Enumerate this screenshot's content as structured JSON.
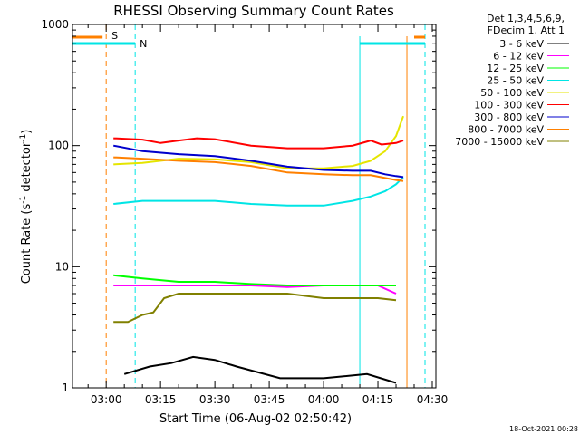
{
  "chart_data": {
    "type": "line",
    "title": "RHESSI Observing Summary Count Rates",
    "xlabel": "Start Time (06-Aug-02 02:50:42)",
    "ylabel_main": "Count Rate (s",
    "ylabel_sup1": "-1",
    "ylabel_mid": " detector",
    "ylabel_sup2": "-1",
    "ylabel_end": ")",
    "y_scale": "log",
    "ylim": [
      1,
      1000
    ],
    "xlim": [
      "02:50:42",
      "04:31:00"
    ],
    "y_ticks": [
      {
        "v": 1,
        "label": "1"
      },
      {
        "v": 10,
        "label": "10"
      },
      {
        "v": 100,
        "label": "100"
      },
      {
        "v": 1000,
        "label": "1000"
      }
    ],
    "x_ticks": [
      "03:00",
      "03:15",
      "03:30",
      "03:45",
      "04:00",
      "04:15",
      "04:30"
    ],
    "legend_header": [
      "Det 1,3,4,5,6,9,",
      "FDecim 1, Att 1"
    ],
    "legend_placement": "right",
    "footer_date": "18-Oct-2021 00:28",
    "markers": [
      {
        "text": "S",
        "color": "#ff8000"
      },
      {
        "text": "N",
        "color": "#00e5e5"
      }
    ],
    "series": [
      {
        "name": "3 - 6 keV",
        "color": "#000000",
        "points": [
          [
            "03:05",
            1.3
          ],
          [
            "03:12",
            1.5
          ],
          [
            "03:18",
            1.6
          ],
          [
            "03:24",
            1.8
          ],
          [
            "03:30",
            1.7
          ],
          [
            "03:36",
            1.5
          ],
          [
            "03:48",
            1.2
          ],
          [
            "04:00",
            1.2
          ],
          [
            "04:12",
            1.3
          ],
          [
            "04:20",
            1.1
          ]
        ]
      },
      {
        "name": "6 - 12 keV",
        "color": "#ff00ff",
        "points": [
          [
            "03:02",
            7
          ],
          [
            "03:10",
            7
          ],
          [
            "03:20",
            7
          ],
          [
            "03:30",
            7
          ],
          [
            "03:40",
            7
          ],
          [
            "03:50",
            6.8
          ],
          [
            "04:00",
            7
          ],
          [
            "04:10",
            7
          ],
          [
            "04:15",
            7
          ],
          [
            "04:20",
            6
          ]
        ]
      },
      {
        "name": "12 - 25 keV",
        "color": "#00ff00",
        "points": [
          [
            "03:02",
            8.5
          ],
          [
            "03:10",
            8
          ],
          [
            "03:20",
            7.5
          ],
          [
            "03:30",
            7.5
          ],
          [
            "03:40",
            7.2
          ],
          [
            "03:50",
            7
          ],
          [
            "04:00",
            7
          ],
          [
            "04:10",
            7
          ],
          [
            "04:15",
            7
          ],
          [
            "04:20",
            7
          ]
        ]
      },
      {
        "name": "25 - 50 keV",
        "color": "#00e5e5",
        "points": [
          [
            "03:02",
            33
          ],
          [
            "03:10",
            35
          ],
          [
            "03:20",
            35
          ],
          [
            "03:30",
            35
          ],
          [
            "03:40",
            33
          ],
          [
            "03:50",
            32
          ],
          [
            "04:00",
            32
          ],
          [
            "04:08",
            35
          ],
          [
            "04:13",
            38
          ],
          [
            "04:17",
            42
          ],
          [
            "04:20",
            48
          ],
          [
            "04:22",
            55
          ]
        ]
      },
      {
        "name": "50 - 100 keV",
        "color": "#e5e500",
        "points": [
          [
            "03:02",
            70
          ],
          [
            "03:10",
            72
          ],
          [
            "03:20",
            78
          ],
          [
            "03:30",
            77
          ],
          [
            "03:40",
            73
          ],
          [
            "03:50",
            65
          ],
          [
            "04:00",
            65
          ],
          [
            "04:08",
            68
          ],
          [
            "04:13",
            75
          ],
          [
            "04:17",
            90
          ],
          [
            "04:20",
            120
          ],
          [
            "04:22",
            175
          ]
        ]
      },
      {
        "name": "100 - 300 keV",
        "color": "#ff0000",
        "points": [
          [
            "03:02",
            115
          ],
          [
            "03:10",
            112
          ],
          [
            "03:15",
            105
          ],
          [
            "03:20",
            110
          ],
          [
            "03:25",
            115
          ],
          [
            "03:30",
            113
          ],
          [
            "03:40",
            100
          ],
          [
            "03:50",
            95
          ],
          [
            "04:00",
            95
          ],
          [
            "04:08",
            100
          ],
          [
            "04:13",
            110
          ],
          [
            "04:16",
            102
          ],
          [
            "04:20",
            105
          ],
          [
            "04:22",
            110
          ]
        ]
      },
      {
        "name": "300 - 800 keV",
        "color": "#0000cc",
        "points": [
          [
            "03:02",
            100
          ],
          [
            "03:10",
            90
          ],
          [
            "03:20",
            85
          ],
          [
            "03:30",
            82
          ],
          [
            "03:40",
            75
          ],
          [
            "03:50",
            67
          ],
          [
            "04:00",
            63
          ],
          [
            "04:08",
            62
          ],
          [
            "04:13",
            62
          ],
          [
            "04:17",
            58
          ],
          [
            "04:20",
            56
          ],
          [
            "04:22",
            55
          ]
        ]
      },
      {
        "name": "800 - 7000 keV",
        "color": "#ff8000",
        "points": [
          [
            "03:02",
            80
          ],
          [
            "03:10",
            78
          ],
          [
            "03:20",
            75
          ],
          [
            "03:30",
            73
          ],
          [
            "03:40",
            68
          ],
          [
            "03:50",
            60
          ],
          [
            "04:00",
            58
          ],
          [
            "04:08",
            57
          ],
          [
            "04:13",
            57
          ],
          [
            "04:17",
            54
          ],
          [
            "04:20",
            52
          ],
          [
            "04:22",
            51
          ]
        ]
      },
      {
        "name": "7000 - 15000 keV",
        "color": "#808000",
        "points": [
          [
            "03:02",
            3.5
          ],
          [
            "03:06",
            3.5
          ],
          [
            "03:10",
            4
          ],
          [
            "03:13",
            4.2
          ],
          [
            "03:16",
            5.5
          ],
          [
            "03:20",
            6
          ],
          [
            "03:30",
            6
          ],
          [
            "03:40",
            6
          ],
          [
            "03:50",
            6
          ],
          [
            "04:00",
            5.5
          ],
          [
            "04:10",
            5.5
          ],
          [
            "04:15",
            5.5
          ],
          [
            "04:20",
            5.3
          ]
        ]
      }
    ]
  }
}
